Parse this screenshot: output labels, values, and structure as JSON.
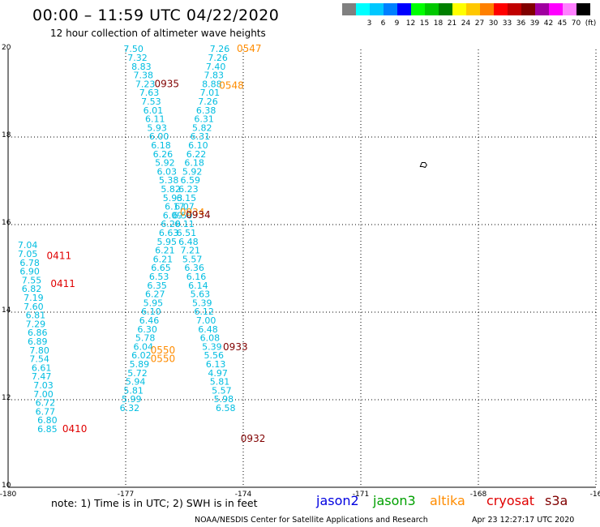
{
  "header": {
    "title": "00:00 – 11:59 UTC 04/22/2020",
    "subtitle": "12 hour collection of altimeter wave heights"
  },
  "legend": {
    "unit": "(ft)",
    "items": [
      {
        "color": "#808080",
        "label": ""
      },
      {
        "color": "#00ffff",
        "label": "3"
      },
      {
        "color": "#00c8ff",
        "label": "6"
      },
      {
        "color": "#0080ff",
        "label": "9"
      },
      {
        "color": "#0000ff",
        "label": "12"
      },
      {
        "color": "#00ff00",
        "label": "15"
      },
      {
        "color": "#00c800",
        "label": "18"
      },
      {
        "color": "#008000",
        "label": "21"
      },
      {
        "color": "#ffff00",
        "label": "24"
      },
      {
        "color": "#ffc800",
        "label": "27"
      },
      {
        "color": "#ff8000",
        "label": "30"
      },
      {
        "color": "#ff0000",
        "label": "33"
      },
      {
        "color": "#c00000",
        "label": "36"
      },
      {
        "color": "#800000",
        "label": "39"
      },
      {
        "color": "#a000a0",
        "label": "42"
      },
      {
        "color": "#ff00ff",
        "label": "45"
      },
      {
        "color": "#ff80ff",
        "label": "70"
      },
      {
        "color": "#000000",
        "label": ""
      }
    ]
  },
  "axes": {
    "x_ticks": [
      "-180",
      "-177",
      "-174",
      "-171",
      "-168",
      "-16"
    ],
    "y_ticks": [
      "20",
      "18",
      "16",
      "14",
      "12",
      "10"
    ]
  },
  "chart_data": {
    "type": "scatter",
    "xlim": [
      -180,
      -165
    ],
    "ylim": [
      10,
      20
    ],
    "grid": true,
    "tracks": [
      {
        "color": "#00bde0",
        "points": [
          {
            "lon": -176.8,
            "lat": 19.94,
            "swh": "7.50"
          },
          {
            "lon": -176.7,
            "lat": 19.74,
            "swh": "7.32"
          },
          {
            "lon": -176.6,
            "lat": 19.54,
            "swh": "8.83"
          },
          {
            "lon": -176.55,
            "lat": 19.34,
            "swh": "7.38"
          },
          {
            "lon": -176.5,
            "lat": 19.14,
            "swh": "7.23"
          },
          {
            "lon": -176.4,
            "lat": 18.94,
            "swh": "7.63"
          },
          {
            "lon": -176.35,
            "lat": 18.74,
            "swh": "7.53"
          },
          {
            "lon": -176.3,
            "lat": 18.54,
            "swh": "6.01"
          },
          {
            "lon": -176.25,
            "lat": 18.34,
            "swh": "6.11"
          },
          {
            "lon": -176.2,
            "lat": 18.14,
            "swh": "5.93"
          },
          {
            "lon": -176.15,
            "lat": 17.94,
            "swh": "6.00"
          },
          {
            "lon": -176.1,
            "lat": 17.74,
            "swh": "6.18"
          },
          {
            "lon": -176.05,
            "lat": 17.54,
            "swh": "6.26"
          },
          {
            "lon": -176.0,
            "lat": 17.34,
            "swh": "5.92"
          },
          {
            "lon": -175.95,
            "lat": 17.14,
            "swh": "6.03"
          },
          {
            "lon": -175.9,
            "lat": 16.94,
            "swh": "5.38"
          },
          {
            "lon": -175.85,
            "lat": 16.74,
            "swh": "5.82"
          },
          {
            "lon": -175.8,
            "lat": 16.54,
            "swh": "5.93"
          },
          {
            "lon": -175.75,
            "lat": 16.34,
            "swh": "6.17"
          },
          {
            "lon": -175.8,
            "lat": 16.14,
            "swh": "6.09"
          },
          {
            "lon": -175.85,
            "lat": 15.94,
            "swh": "6.20"
          },
          {
            "lon": -175.9,
            "lat": 15.74,
            "swh": "6.63"
          },
          {
            "lon": -175.95,
            "lat": 15.54,
            "swh": "5.95"
          },
          {
            "lon": -176.0,
            "lat": 15.34,
            "swh": "6.21"
          },
          {
            "lon": -176.05,
            "lat": 15.14,
            "swh": "6.21"
          },
          {
            "lon": -176.1,
            "lat": 14.94,
            "swh": "6.65"
          },
          {
            "lon": -176.15,
            "lat": 14.74,
            "swh": "6.53"
          },
          {
            "lon": -176.2,
            "lat": 14.54,
            "swh": "6.35"
          },
          {
            "lon": -176.25,
            "lat": 14.34,
            "swh": "6.27"
          },
          {
            "lon": -176.3,
            "lat": 14.14,
            "swh": "5.95"
          },
          {
            "lon": -176.35,
            "lat": 13.94,
            "swh": "6.10"
          },
          {
            "lon": -176.4,
            "lat": 13.74,
            "swh": "6.46"
          },
          {
            "lon": -176.45,
            "lat": 13.54,
            "swh": "6.30"
          },
          {
            "lon": -176.5,
            "lat": 13.34,
            "swh": "5.78"
          },
          {
            "lon": -176.55,
            "lat": 13.14,
            "swh": "6.04"
          },
          {
            "lon": -176.6,
            "lat": 12.94,
            "swh": "6.02"
          },
          {
            "lon": -176.65,
            "lat": 12.74,
            "swh": "5.89"
          },
          {
            "lon": -176.7,
            "lat": 12.54,
            "swh": "5.72"
          },
          {
            "lon": -176.75,
            "lat": 12.34,
            "swh": "5.94"
          },
          {
            "lon": -176.8,
            "lat": 12.14,
            "swh": "5.81"
          },
          {
            "lon": -176.85,
            "lat": 11.94,
            "swh": "5.99"
          },
          {
            "lon": -176.9,
            "lat": 11.74,
            "swh": "6.32"
          }
        ]
      },
      {
        "color": "#00bde0",
        "points": [
          {
            "lon": -174.6,
            "lat": 19.94,
            "swh": "7.26"
          },
          {
            "lon": -174.65,
            "lat": 19.74,
            "swh": "7.26"
          },
          {
            "lon": -174.7,
            "lat": 19.54,
            "swh": "7.40"
          },
          {
            "lon": -174.75,
            "lat": 19.34,
            "swh": "7.83"
          },
          {
            "lon": -174.8,
            "lat": 19.14,
            "swh": "8.88"
          },
          {
            "lon": -174.85,
            "lat": 18.94,
            "swh": "7.01"
          },
          {
            "lon": -174.9,
            "lat": 18.74,
            "swh": "7.26"
          },
          {
            "lon": -174.95,
            "lat": 18.54,
            "swh": "6.38"
          },
          {
            "lon": -175.0,
            "lat": 18.34,
            "swh": "6.31"
          },
          {
            "lon": -175.05,
            "lat": 18.14,
            "swh": "5.82"
          },
          {
            "lon": -175.1,
            "lat": 17.94,
            "swh": "6.31"
          },
          {
            "lon": -175.15,
            "lat": 17.74,
            "swh": "6.10"
          },
          {
            "lon": -175.2,
            "lat": 17.54,
            "swh": "6.22"
          },
          {
            "lon": -175.25,
            "lat": 17.34,
            "swh": "6.18"
          },
          {
            "lon": -175.3,
            "lat": 17.14,
            "swh": "5.92"
          },
          {
            "lon": -175.35,
            "lat": 16.94,
            "swh": "6.59"
          },
          {
            "lon": -175.4,
            "lat": 16.74,
            "swh": "6.23"
          },
          {
            "lon": -175.45,
            "lat": 16.54,
            "swh": "6.15"
          },
          {
            "lon": -175.5,
            "lat": 16.34,
            "swh": "6.07"
          },
          {
            "lon": -175.55,
            "lat": 16.14,
            "swh": "6.50"
          },
          {
            "lon": -175.5,
            "lat": 15.94,
            "swh": "6.11"
          },
          {
            "lon": -175.45,
            "lat": 15.74,
            "swh": "6.51"
          },
          {
            "lon": -175.4,
            "lat": 15.54,
            "swh": "6.48"
          },
          {
            "lon": -175.35,
            "lat": 15.34,
            "swh": "7.21"
          },
          {
            "lon": -175.3,
            "lat": 15.14,
            "swh": "5.57"
          },
          {
            "lon": -175.25,
            "lat": 14.94,
            "swh": "6.36"
          },
          {
            "lon": -175.2,
            "lat": 14.74,
            "swh": "6.16"
          },
          {
            "lon": -175.15,
            "lat": 14.54,
            "swh": "6.14"
          },
          {
            "lon": -175.1,
            "lat": 14.34,
            "swh": "5.63"
          },
          {
            "lon": -175.05,
            "lat": 14.14,
            "swh": "5.39"
          },
          {
            "lon": -175.0,
            "lat": 13.94,
            "swh": "6.12"
          },
          {
            "lon": -174.95,
            "lat": 13.74,
            "swh": "7.00"
          },
          {
            "lon": -174.9,
            "lat": 13.54,
            "swh": "6.48"
          },
          {
            "lon": -174.85,
            "lat": 13.34,
            "swh": "6.08"
          },
          {
            "lon": -174.8,
            "lat": 13.14,
            "swh": "5.39"
          },
          {
            "lon": -174.75,
            "lat": 12.94,
            "swh": "5.56"
          },
          {
            "lon": -174.7,
            "lat": 12.74,
            "swh": "6.13"
          },
          {
            "lon": -174.65,
            "lat": 12.54,
            "swh": "4.97"
          },
          {
            "lon": -174.6,
            "lat": 12.34,
            "swh": "5.81"
          },
          {
            "lon": -174.55,
            "lat": 12.14,
            "swh": "5.57"
          },
          {
            "lon": -174.5,
            "lat": 11.94,
            "swh": "5.98"
          },
          {
            "lon": -174.45,
            "lat": 11.74,
            "swh": "6.58"
          }
        ]
      },
      {
        "color": "#00bde0",
        "points": [
          {
            "lon": -179.5,
            "lat": 15.46,
            "swh": "7.04"
          },
          {
            "lon": -179.5,
            "lat": 15.26,
            "swh": "7.05"
          },
          {
            "lon": -179.45,
            "lat": 15.06,
            "swh": "6.78"
          },
          {
            "lon": -179.45,
            "lat": 14.86,
            "swh": "6.90"
          },
          {
            "lon": -179.4,
            "lat": 14.66,
            "swh": "7.55"
          },
          {
            "lon": -179.4,
            "lat": 14.46,
            "swh": "6.82"
          },
          {
            "lon": -179.35,
            "lat": 14.26,
            "swh": "7.19"
          },
          {
            "lon": -179.35,
            "lat": 14.06,
            "swh": "7.60"
          },
          {
            "lon": -179.3,
            "lat": 13.86,
            "swh": "6.81"
          },
          {
            "lon": -179.3,
            "lat": 13.66,
            "swh": "7.29"
          },
          {
            "lon": -179.25,
            "lat": 13.46,
            "swh": "6.86"
          },
          {
            "lon": -179.25,
            "lat": 13.26,
            "swh": "6.89"
          },
          {
            "lon": -179.2,
            "lat": 13.06,
            "swh": "7.80"
          },
          {
            "lon": -179.2,
            "lat": 12.86,
            "swh": "7.54"
          },
          {
            "lon": -179.15,
            "lat": 12.66,
            "swh": "6.61"
          },
          {
            "lon": -179.15,
            "lat": 12.46,
            "swh": "7.47"
          },
          {
            "lon": -179.1,
            "lat": 12.26,
            "swh": "7.03"
          },
          {
            "lon": -179.1,
            "lat": 12.06,
            "swh": "7.00"
          },
          {
            "lon": -179.05,
            "lat": 11.86,
            "swh": "6.72"
          },
          {
            "lon": -179.05,
            "lat": 11.66,
            "swh": "6.77"
          },
          {
            "lon": -179.0,
            "lat": 11.46,
            "swh": "6.80"
          },
          {
            "lon": -179.0,
            "lat": 11.26,
            "swh": "6.85"
          }
        ]
      }
    ],
    "time_labels": [
      {
        "text": "0547",
        "color": "#ff8c00",
        "lon": -173.85,
        "lat": 19.94
      },
      {
        "text": "0935",
        "color": "#800000",
        "lon": -175.95,
        "lat": 19.14
      },
      {
        "text": "0548",
        "color": "#ff8c00",
        "lon": -174.3,
        "lat": 19.1
      },
      {
        "text": "0934",
        "color": "#ff8c00",
        "lon": -175.3,
        "lat": 16.2
      },
      {
        "text": "0934",
        "color": "#800000",
        "lon": -175.15,
        "lat": 16.15
      },
      {
        "text": "0411",
        "color": "#e00000",
        "lon": -178.7,
        "lat": 15.21
      },
      {
        "text": "0411",
        "color": "#e00000",
        "lon": -178.6,
        "lat": 14.57
      },
      {
        "text": "0933",
        "color": "#800000",
        "lon": -174.2,
        "lat": 13.13
      },
      {
        "text": "0550",
        "color": "#ff8c00",
        "lon": -176.05,
        "lat": 13.06
      },
      {
        "text": "0550",
        "color": "#ff8c00",
        "lon": -176.05,
        "lat": 12.86
      },
      {
        "text": "0410",
        "color": "#e00000",
        "lon": -178.3,
        "lat": 11.26
      },
      {
        "text": "0932",
        "color": "#800000",
        "lon": -173.75,
        "lat": 11.04
      }
    ],
    "island": {
      "lon": -169.4,
      "lat": 17.38
    }
  },
  "footer": {
    "note": "note:  1) Time is in UTC;  2) SWH is in feet",
    "credit": "NOAA/NESDIS Center for Satellite Applications and Research",
    "timestamp": "Apr 23 12:27:17 UTC 2020",
    "satellites": [
      {
        "name": "jason2",
        "color": "#0000e0"
      },
      {
        "name": "jason3",
        "color": "#00a000"
      },
      {
        "name": "altika",
        "color": "#ff8c00"
      },
      {
        "name": "cryosat",
        "color": "#e00000"
      },
      {
        "name": "s3a",
        "color": "#800000"
      }
    ]
  }
}
